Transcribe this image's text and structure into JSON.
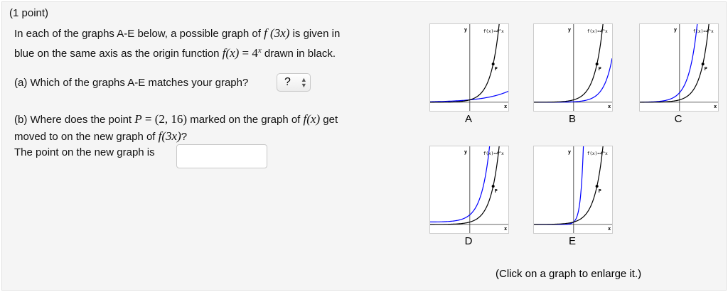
{
  "points": "(1 point)",
  "intro": {
    "l1a": "In each of the graphs A-E below, a possible graph of ",
    "l1m": "f (3x)",
    "l1b": " is given in",
    "l2a": "blue on the same axis as the origin function ",
    "l2m": "f(x)",
    "l2eq": " = 4",
    "l2sup": "x",
    "l2b": " drawn in black."
  },
  "part_a": {
    "text": "(a) Which of the graphs A-E matches your graph?",
    "select_value": "?"
  },
  "part_b": {
    "l1a": "(b) Where does the point ",
    "P": "P",
    "eq": " = (2, 16)",
    "l1b": " marked on the graph of ",
    "fx": "f(x)",
    "l1c": " get",
    "l2a": "moved to on the new graph of ",
    "f3x": "f(3x)",
    "l2b": "?",
    "l3": "The point on the new graph is",
    "input_value": ""
  },
  "graphs": [
    {
      "label": "A"
    },
    {
      "label": "B"
    },
    {
      "label": "C"
    },
    {
      "label": "D"
    },
    {
      "label": "E"
    }
  ],
  "graph_text": {
    "y": "y",
    "x": "x",
    "f": "f(x)=4^x",
    "p": "P"
  },
  "caption": "(Click on a graph to enlarge it.)",
  "colors": {
    "original": "#000000",
    "transformed": "#0000ff"
  }
}
